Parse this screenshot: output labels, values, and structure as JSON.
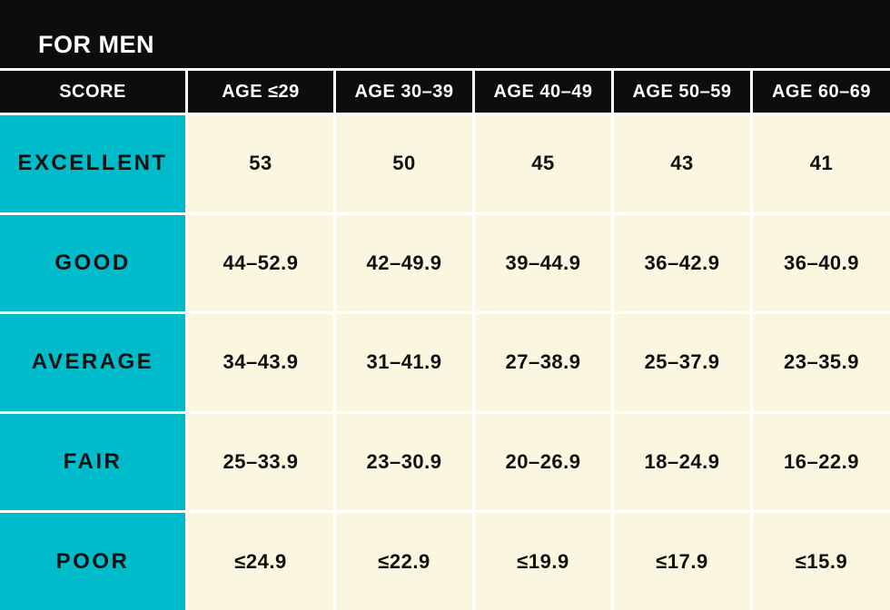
{
  "title": "FOR MEN",
  "colors": {
    "band_bg": "#0d0d0d",
    "header_bg": "#0d0d0d",
    "header_text": "#ffffff",
    "label_bg": "#00bcca",
    "cell_bg": "#fbf6df",
    "body_text": "#111111",
    "divider": "#ffffff"
  },
  "chart_data": {
    "type": "table",
    "title": "FOR MEN",
    "columns": [
      "SCORE",
      "AGE ≤29",
      "AGE 30–39",
      "AGE 40–49",
      "AGE 50–59",
      "AGE 60–69"
    ],
    "rows": [
      {
        "label": "EXCELLENT",
        "values": [
          "53",
          "50",
          "45",
          "43",
          "41"
        ]
      },
      {
        "label": "GOOD",
        "values": [
          "44–52.9",
          "42–49.9",
          "39–44.9",
          "36–42.9",
          "36–40.9"
        ]
      },
      {
        "label": "AVERAGE",
        "values": [
          "34–43.9",
          "31–41.9",
          "27–38.9",
          "25–37.9",
          "23–35.9"
        ]
      },
      {
        "label": "FAIR",
        "values": [
          "25–33.9",
          "23–30.9",
          "20–26.9",
          "18–24.9",
          "16–22.9"
        ]
      },
      {
        "label": "POOR",
        "values": [
          "≤24.9",
          "≤22.9",
          "≤19.9",
          "≤17.9",
          "≤15.9"
        ]
      }
    ]
  }
}
